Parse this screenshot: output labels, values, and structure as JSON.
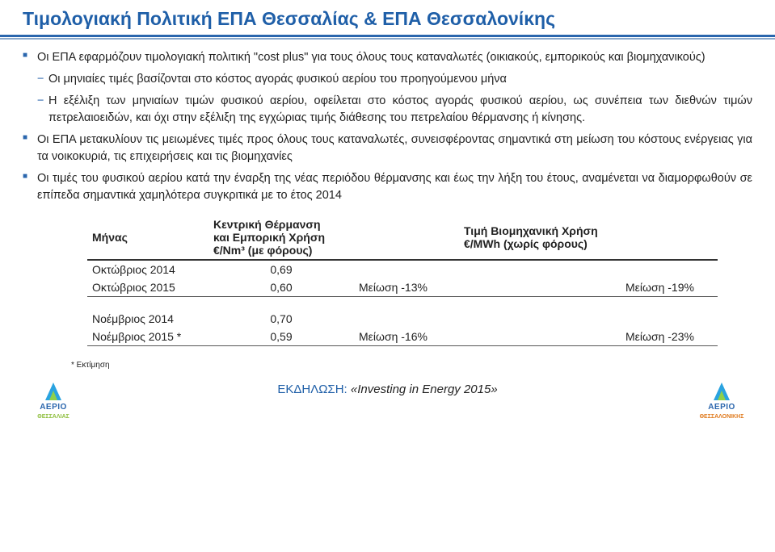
{
  "title": "Τιμολογιακή Πολιτική ΕΠΑ Θεσσαλίας & ΕΠΑ Θεσσαλονίκης",
  "bullets": {
    "b1": "Οι ΕΠΑ εφαρμόζουν τιμολογιακή πολιτική \"cost plus\" για τους όλους τους καταναλωτές (οικιακούς, εμπορικούς και βιομηχανικούς)",
    "b1s1": "Οι μηνιαίες τιμές βασίζονται στο κόστος αγοράς φυσικού αερίου του προηγούμενου μήνα",
    "b1s2": "Η εξέλιξη των μηνιαίων τιμών φυσικού αερίου, οφείλεται στο κόστος αγοράς φυσικού αερίου, ως συνέπεια των διεθνών τιμών πετρελαιοειδών, και όχι στην εξέλιξη της εγχώριας τιμής διάθεσης του πετρελαίου θέρμανσης ή κίνησης.",
    "b2": "Οι ΕΠΑ μετακυλίουν τις μειωμένες τιμές προς όλους τους καταναλωτές, συνεισφέροντας σημαντικά στη μείωση του κόστους ενέργειας για τα νοικοκυριά, τις επιχειρήσεις και τις βιομηχανίες",
    "b3": "Οι τιμές του φυσικού αερίου κατά την έναρξη της νέας περιόδου θέρμανσης και έως την λήξη του έτους, αναμένεται να διαμορφωθούν σε επίπεδα σημαντικά χαμηλότερα συγκριτικά με το έτος 2014"
  },
  "table": {
    "head_month": "Μήνας",
    "head_val_l1": "Κεντρική Θέρμανση",
    "head_val_l2": "και Εμπορική Χρήση",
    "head_val_l3": "€/Nm³ (με φόρους)",
    "head_ind_l1": "Τιμή Βιομηχανική Χρήση",
    "head_ind_l2": "€/MWh (χωρίς φόρους)",
    "r1_month": "Οκτώβριος 2014",
    "r1_val": "0,69",
    "r2_month": "Οκτώβριος 2015",
    "r2_val": "0,60",
    "r2_var": "Μείωση -13%",
    "r2_ind_var": "Μείωση -19%",
    "r3_month": "Νοέμβριος 2014",
    "r3_val": "0,70",
    "r4_month": "Νοέμβριος 2015 *",
    "r4_val": "0,59",
    "r4_var": "Μείωση -16%",
    "r4_ind_var": "Μείωση -23%"
  },
  "note": "* Εκτίμηση",
  "footer": {
    "prefix": "ΕΚΔΗΛΩΣΗ: ",
    "event": "«Investing in Energy 2015»",
    "logo_word": "ΑΕΡΙΟ",
    "logo_left_region": "ΘΕΣΣΑΛΙΑΣ",
    "logo_right_region": "ΘΕΣΣΑΛΟΝΙΚΗΣ"
  },
  "colors": {
    "brand_blue": "#1f5fa8",
    "rule_blue": "#2a66ad",
    "rule_light": "#8aa9cc"
  }
}
